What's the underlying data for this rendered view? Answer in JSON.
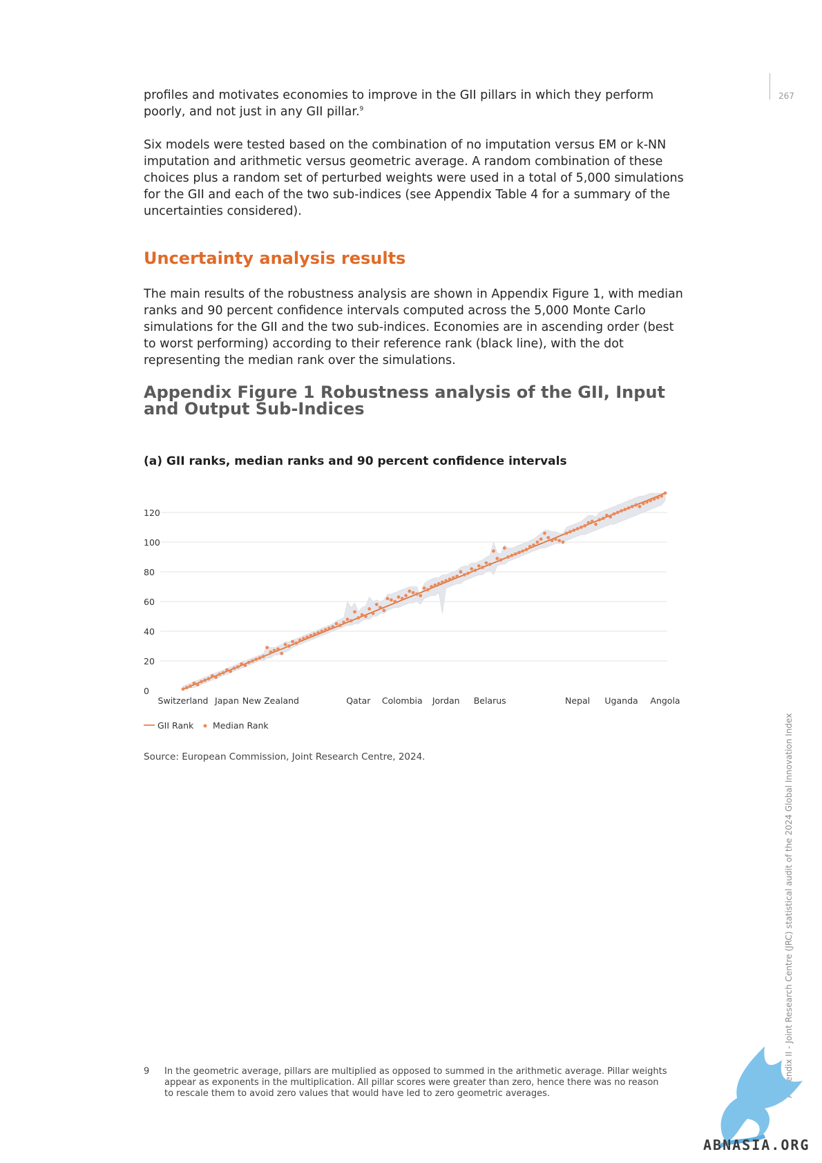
{
  "page": {
    "number": "267",
    "side_text": "Appendix II - Joint Research Centre (JRC) statistical audit of the 2024 Global Innovation Index"
  },
  "text": {
    "para1_main": "profiles and motivates economies to improve in the GII pillars in which they perform poorly, and not just in any GII pillar.",
    "para1_ref": "9",
    "para2": "Six models were tested based on the combination of no imputation versus EM or k-NN imputation and arithmetic versus geometric average. A random combination of these choices plus a random set of perturbed weights were used in a total of 5,000 simulations for the GII and each of the two sub-indices (see Appendix Table 4 for a summary of the uncertainties considered).",
    "section_heading": "Uncertainty analysis results",
    "para3": "The main results of the robustness analysis are shown in Appendix Figure 1, with median ranks and 90 percent confidence intervals computed across the 5,000 Monte Carlo simulations for the GII and the two sub-indices. Economies are in ascending order (best to worst performing) according to their reference rank (black line), with the dot representing the median rank over the simulations.",
    "figure_title": "Appendix Figure 1 Robustness analysis of the GII, Input and Output Sub-Indices",
    "panel_title": "(a) GII ranks, median ranks and  90 percent confidence intervals",
    "source": "Source: European Commission, Joint Research Centre, 2024.",
    "footnote_num": "9",
    "footnote_text": "In the geometric average, pillars are multiplied as opposed to summed in the arithmetic average. Pillar weights appear as exponents in the multiplication. All pillar scores were greater than zero, hence there was no reason to rescale them to avoid zero values that would have led to zero geometric averages."
  },
  "logo": {
    "text": "ABNASIA.ORG"
  },
  "colors": {
    "accent": "#e06a28",
    "band": "#e4e6ec",
    "grid": "#e3e3e3"
  },
  "chart_data": {
    "type": "line",
    "n_economies": 133,
    "ylim": [
      0,
      133
    ],
    "y_ticks": [
      0,
      20,
      40,
      60,
      80,
      100,
      120
    ],
    "x_category_labels": [
      {
        "label": "Switzerland",
        "rank": 1
      },
      {
        "label": "Japan",
        "rank": 13
      },
      {
        "label": "New Zealand",
        "rank": 25
      },
      {
        "label": "Qatar",
        "rank": 49
      },
      {
        "label": "Colombia",
        "rank": 61
      },
      {
        "label": "Jordan",
        "rank": 73
      },
      {
        "label": "Belarus",
        "rank": 85
      },
      {
        "label": "Nepal",
        "rank": 109
      },
      {
        "label": "Uganda",
        "rank": 121
      },
      {
        "label": "Angola",
        "rank": 133
      }
    ],
    "series": [
      {
        "name": "GII Rank",
        "kind": "line"
      },
      {
        "name": "Median Rank",
        "kind": "dots"
      }
    ],
    "legend": "bottom-left",
    "grid": true,
    "median_ranks": [
      1,
      2,
      3,
      5,
      4,
      6,
      7,
      8,
      10,
      9,
      11,
      12,
      14,
      13,
      15,
      16,
      18,
      17,
      19,
      20,
      21,
      22,
      23,
      29,
      26,
      27,
      28,
      25,
      31,
      30,
      33,
      32,
      34,
      35,
      36,
      37,
      38,
      39,
      40,
      41,
      42,
      43,
      45,
      44,
      46,
      48,
      47,
      53,
      49,
      51,
      50,
      55,
      52,
      58,
      56,
      54,
      62,
      61,
      60,
      63,
      62,
      64,
      67,
      66,
      65,
      64,
      69,
      68,
      70,
      71,
      72,
      73,
      74,
      75,
      76,
      77,
      80,
      78,
      79,
      82,
      81,
      84,
      83,
      86,
      85,
      94,
      89,
      88,
      96,
      90,
      91,
      92,
      93,
      94,
      95,
      97,
      98,
      100,
      102,
      106,
      103,
      101,
      102,
      101,
      100,
      106,
      107,
      108,
      109,
      110,
      111,
      113,
      114,
      112,
      115,
      116,
      118,
      117,
      119,
      120,
      121,
      122,
      123,
      124,
      125,
      124,
      126,
      127,
      128,
      129,
      130,
      131,
      133
    ],
    "ci_low": [
      1,
      1,
      2,
      2,
      3,
      4,
      5,
      6,
      7,
      8,
      9,
      10,
      11,
      12,
      13,
      14,
      15,
      16,
      17,
      18,
      19,
      20,
      20,
      22,
      22,
      24,
      24,
      25,
      26,
      27,
      29,
      30,
      31,
      32,
      33,
      34,
      35,
      36,
      37,
      38,
      39,
      40,
      41,
      42,
      43,
      44,
      44,
      45,
      45,
      47,
      48,
      48,
      50,
      50,
      52,
      52,
      54,
      55,
      56,
      56,
      57,
      58,
      59,
      59,
      60,
      58,
      62,
      63,
      64,
      64,
      66,
      52,
      69,
      70,
      71,
      72,
      72,
      74,
      75,
      76,
      77,
      78,
      78,
      80,
      81,
      78,
      84,
      85,
      85,
      87,
      88,
      89,
      90,
      91,
      92,
      93,
      94,
      95,
      96,
      96,
      97,
      98,
      99,
      99,
      100,
      101,
      102,
      103,
      104,
      105,
      105,
      106,
      107,
      108,
      109,
      110,
      111,
      112,
      112,
      113,
      114,
      115,
      116,
      117,
      118,
      119,
      120,
      121,
      122,
      123,
      124,
      125,
      128
    ],
    "ci_high": [
      3,
      4,
      5,
      6,
      7,
      8,
      9,
      10,
      11,
      12,
      13,
      14,
      15,
      16,
      17,
      18,
      19,
      20,
      21,
      22,
      23,
      24,
      25,
      30,
      29,
      29,
      30,
      31,
      33,
      33,
      34,
      35,
      36,
      37,
      38,
      39,
      40,
      41,
      42,
      43,
      44,
      45,
      47,
      48,
      49,
      60,
      56,
      59,
      53,
      56,
      57,
      63,
      60,
      61,
      60,
      61,
      65,
      65,
      66,
      67,
      68,
      69,
      70,
      70,
      70,
      64,
      72,
      74,
      75,
      76,
      76,
      78,
      78,
      79,
      80,
      81,
      83,
      84,
      84,
      86,
      86,
      87,
      88,
      90,
      91,
      100,
      93,
      92,
      98,
      96,
      96,
      97,
      98,
      99,
      100,
      101,
      102,
      104,
      106,
      108,
      108,
      107,
      107,
      106,
      106,
      110,
      111,
      112,
      113,
      114,
      116,
      118,
      118,
      117,
      120,
      121,
      122,
      123,
      124,
      125,
      126,
      127,
      128,
      129,
      130,
      131,
      131,
      132,
      133,
      133,
      133,
      133,
      133
    ]
  }
}
